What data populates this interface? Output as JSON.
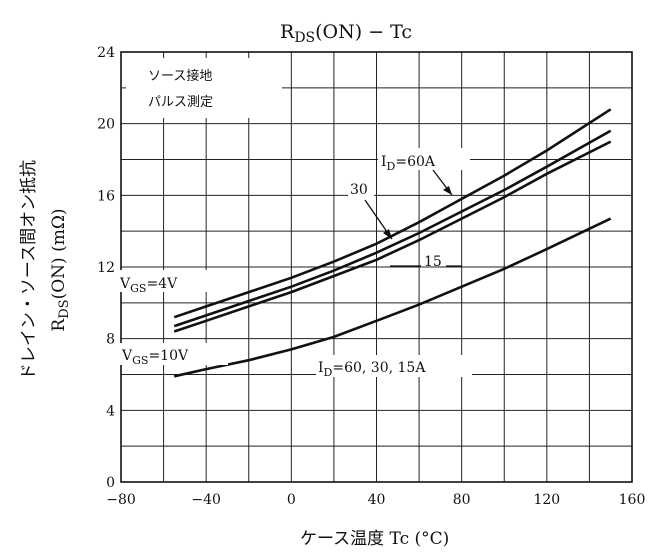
{
  "chart_data": {
    "type": "line",
    "title": "RDS(ON) − Tc",
    "title_parts": {
      "main": "R",
      "sub": "DS",
      "rest": "(ON)  −  Tc"
    },
    "xlabel": "ケース温度    Tc    (°C)",
    "ylabel_line1": "ドレイン・ソース間オン抵抗",
    "ylabel_line2": {
      "main": "R",
      "sub": "DS",
      "rest": "(ON)    (mΩ)"
    },
    "xlim": [
      -80,
      160
    ],
    "ylim": [
      0,
      24
    ],
    "xticks": [
      -80,
      -40,
      0,
      40,
      80,
      120,
      160
    ],
    "xtick_labels": [
      "−80",
      "−40",
      "0",
      "40",
      "80",
      "120",
      "160"
    ],
    "yticks": [
      0,
      4,
      8,
      12,
      16,
      20,
      24
    ],
    "grid": true,
    "notes": [
      "ソース接地",
      "パルス測定"
    ],
    "series": [
      {
        "name": "ID=60A",
        "group": "VGS=4V",
        "x": [
          -55,
          -40,
          -20,
          0,
          20,
          40,
          60,
          80,
          100,
          120,
          150
        ],
        "y": [
          9.2,
          9.8,
          10.6,
          11.4,
          12.3,
          13.3,
          14.5,
          15.8,
          17.1,
          18.5,
          20.8
        ]
      },
      {
        "name": "30",
        "group": "VGS=4V",
        "x": [
          -55,
          -40,
          -20,
          0,
          20,
          40,
          60,
          80,
          100,
          120,
          150
        ],
        "y": [
          8.7,
          9.3,
          10.1,
          10.9,
          11.8,
          12.8,
          13.9,
          15.1,
          16.3,
          17.6,
          19.6
        ]
      },
      {
        "name": "15",
        "group": "VGS=4V",
        "x": [
          -55,
          -40,
          -20,
          0,
          20,
          40,
          60,
          80,
          100,
          120,
          150
        ],
        "y": [
          8.4,
          9.0,
          9.8,
          10.6,
          11.5,
          12.4,
          13.5,
          14.7,
          15.9,
          17.2,
          19.0
        ]
      },
      {
        "name": "ID=60, 30, 15A",
        "group": "VGS=10V",
        "x": [
          -55,
          -40,
          -20,
          0,
          20,
          40,
          60,
          80,
          100,
          120,
          150
        ],
        "y": [
          5.9,
          6.3,
          6.8,
          7.4,
          8.1,
          9.0,
          9.9,
          10.9,
          11.9,
          13.0,
          14.7
        ]
      }
    ],
    "annotations": {
      "vgs4": {
        "main": "V",
        "sub": "GS",
        "rest": "=4V"
      },
      "vgs10": {
        "main": "V",
        "sub": "GS",
        "rest": "=10V"
      },
      "id60": {
        "main": "I",
        "sub": "D",
        "rest": "=60A"
      },
      "id30": "30",
      "id15": "15",
      "idall": {
        "main": "I",
        "sub": "D",
        "rest": "=60, 30, 15A"
      }
    }
  }
}
